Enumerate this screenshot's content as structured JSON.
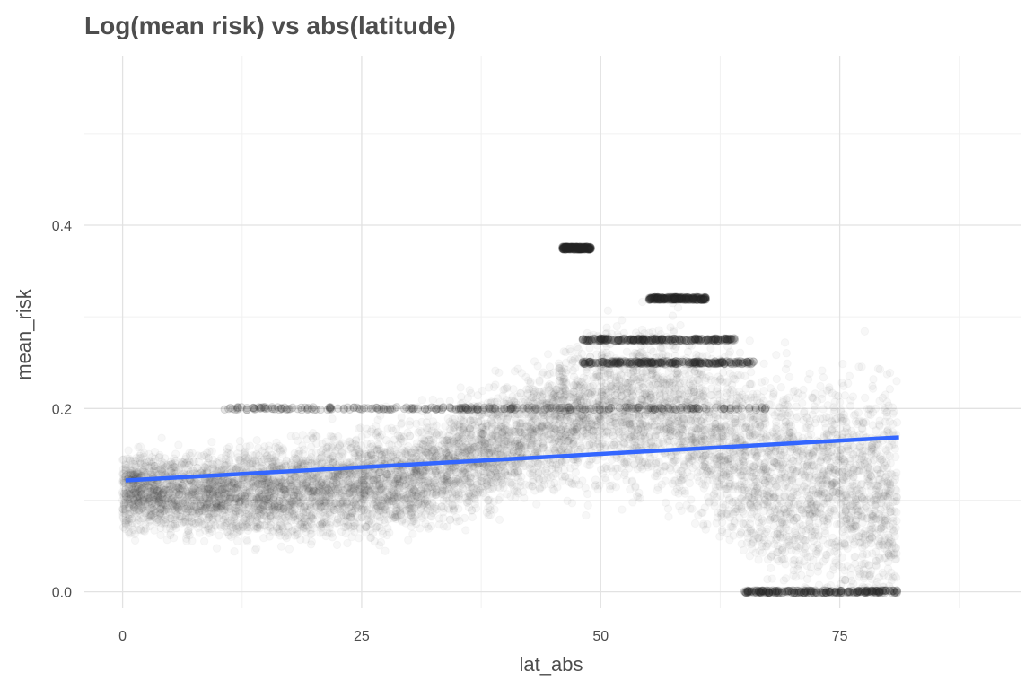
{
  "chart_data": {
    "type": "scatter",
    "title": "Log(mean risk) vs abs(latitude)",
    "xlabel": "lat_abs",
    "ylabel": "mean_risk",
    "xlim": [
      -4,
      94
    ],
    "ylim": [
      -0.018,
      0.585
    ],
    "x_ticks": [
      0,
      25,
      50,
      75
    ],
    "x_tick_labels": [
      "0",
      "25",
      "50",
      "75"
    ],
    "y_ticks": [
      0.0,
      0.2,
      0.4
    ],
    "y_tick_labels": [
      "0.0",
      "0.2",
      "0.4"
    ],
    "x_minor_gridlines": [
      12.5,
      37.5,
      62.5,
      87.5
    ],
    "y_minor_gridlines": [
      0.1,
      0.3,
      0.5
    ],
    "grid": true,
    "legend": "none",
    "point_color": "#2b2b2b",
    "point_alpha": 0.04,
    "point_density_profile": [
      {
        "x": 0,
        "center": 0.11,
        "spread": 0.035
      },
      {
        "x": 10,
        "center": 0.105,
        "spread": 0.04
      },
      {
        "x": 20,
        "center": 0.112,
        "spread": 0.045
      },
      {
        "x": 30,
        "center": 0.125,
        "spread": 0.05
      },
      {
        "x": 40,
        "center": 0.16,
        "spread": 0.055
      },
      {
        "x": 45,
        "center": 0.185,
        "spread": 0.06
      },
      {
        "x": 50,
        "center": 0.2,
        "spread": 0.07
      },
      {
        "x": 55,
        "center": 0.2,
        "spread": 0.075
      },
      {
        "x": 60,
        "center": 0.185,
        "spread": 0.08
      },
      {
        "x": 65,
        "center": 0.14,
        "spread": 0.09
      },
      {
        "x": 70,
        "center": 0.12,
        "spread": 0.1
      },
      {
        "x": 75,
        "center": 0.12,
        "spread": 0.11
      },
      {
        "x": 80,
        "center": 0.1,
        "spread": 0.11
      }
    ],
    "horizontal_bands": [
      {
        "y": 0.0,
        "x_from": 65,
        "x_to": 81
      },
      {
        "y": 0.2,
        "x_from": 10,
        "x_to": 68
      },
      {
        "y": 0.25,
        "x_from": 48,
        "x_to": 66
      },
      {
        "y": 0.275,
        "x_from": 48,
        "x_to": 64
      },
      {
        "y": 0.32,
        "x_from": 55,
        "x_to": 61
      },
      {
        "y": 0.375,
        "x_from": 46,
        "x_to": 49
      }
    ],
    "regression_line": {
      "color": "#3366ff",
      "x": [
        0.3,
        81.2
      ],
      "y": [
        0.1215,
        0.1685
      ]
    }
  }
}
